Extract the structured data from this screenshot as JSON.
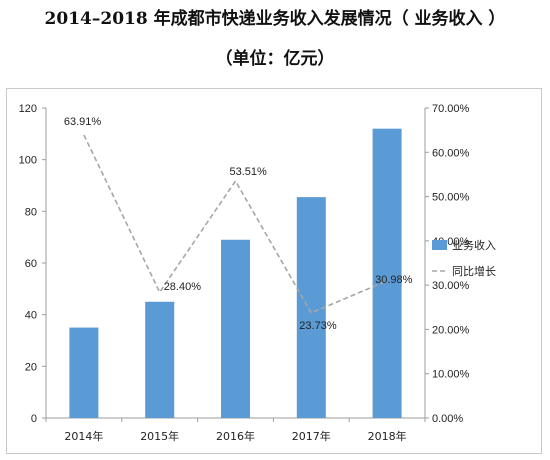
{
  "title": "2014–2018 年成都市快递业务收入发展情况（ 业务收入 ）",
  "subtitle": "（单位：亿元）",
  "chart_data": {
    "type": "bar",
    "categories": [
      "2014年",
      "2015年",
      "2016年",
      "2017年",
      "2018年"
    ],
    "series": [
      {
        "name": "业务收入",
        "type": "bar",
        "axis": "left",
        "values": [
          35,
          45,
          69,
          85.5,
          112
        ],
        "color": "#5b9bd5"
      },
      {
        "name": "同比增长",
        "type": "line",
        "axis": "right",
        "style": "dashed",
        "values": [
          63.91,
          28.4,
          53.51,
          23.73,
          30.98
        ],
        "labels": [
          "63.91%",
          "28.40%",
          "53.51%",
          "23.73%",
          "30.98%"
        ],
        "color": "#a6a6a6"
      }
    ],
    "y_left": {
      "lim": [
        0,
        120
      ],
      "ticks": [
        0,
        20,
        40,
        60,
        80,
        100,
        120
      ]
    },
    "y_right": {
      "lim": [
        0,
        70
      ],
      "ticks": [
        0,
        10,
        20,
        30,
        40,
        50,
        60,
        70
      ],
      "tick_labels": [
        "0.00%",
        "10.00%",
        "20.00%",
        "30.00%",
        "40.00%",
        "50.00%",
        "60.00%",
        "70.00%"
      ]
    },
    "grid": false,
    "legend": "right"
  }
}
